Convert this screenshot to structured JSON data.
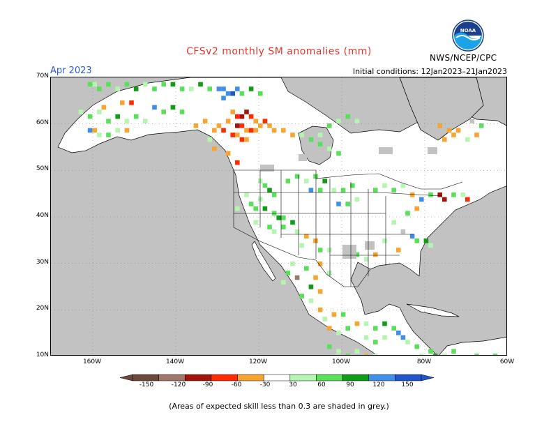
{
  "header": {
    "title": "CFSv2 monthly SM anomalies (mm)",
    "month": "Apr 2023",
    "initial_conditions": "Initial conditions: 12Jan2023–21Jan2023",
    "org": "NWS/NCEP/CPC",
    "logo_text": "NOAA"
  },
  "axes": {
    "lat_labels": [
      "70N",
      "60N",
      "50N",
      "40N",
      "30N",
      "20N",
      "10N"
    ],
    "lon_labels": [
      "160W",
      "140W",
      "120W",
      "100W",
      "80W",
      "60W"
    ]
  },
  "colorbar": {
    "labels": [
      "-150",
      "-120",
      "-90",
      "-60",
      "-30",
      "30",
      "60",
      "90",
      "120",
      "150"
    ],
    "colors": [
      "#6b4a3a",
      "#a0766a",
      "#a3140c",
      "#ff2a00",
      "#f6a531",
      "#ffffff",
      "#b4f5b0",
      "#59e05a",
      "#119b17",
      "#3f8fe8",
      "#2155c9"
    ]
  },
  "footnote": "(Areas of expected skill less than 0.3 are shaded in grey.)",
  "map_colors": {
    "ocean": "#c2c2c2",
    "land": "#ffffff",
    "grey": "#c2c2c2",
    "lightgreen": "#b4f5b0",
    "green": "#59e05a",
    "darkgreen": "#119b17",
    "blue": "#3f8fe8",
    "darkblue": "#2155c9",
    "orange": "#f6a531",
    "red": "#ff2a00",
    "darkred": "#a3140c",
    "brown": "#a0766a"
  }
}
